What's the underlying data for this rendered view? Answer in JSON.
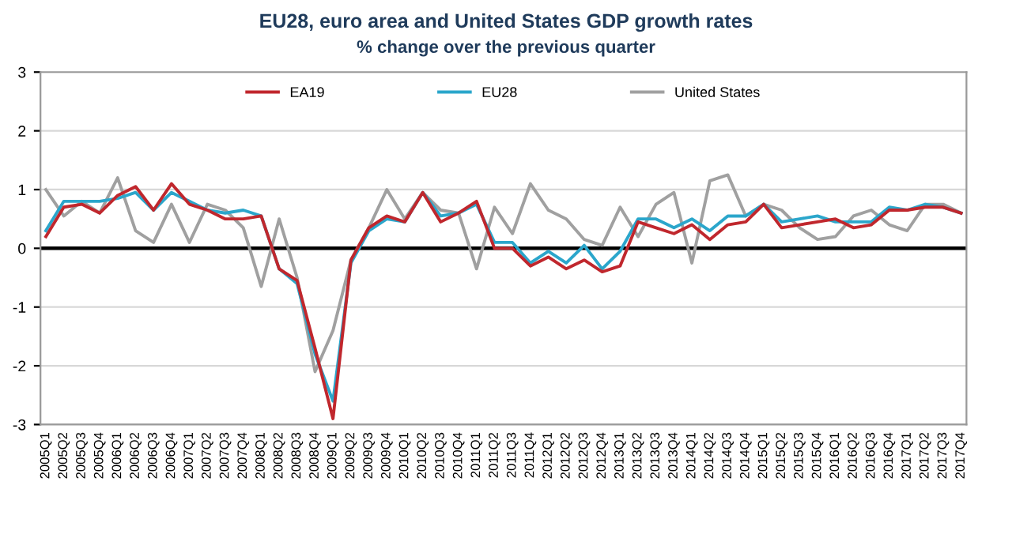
{
  "chart_data": {
    "type": "line",
    "title": "EU28, euro area and United States GDP growth rates",
    "subtitle": "% change over the previous quarter",
    "categories": [
      "2005Q1",
      "2005Q2",
      "2005Q3",
      "2005Q4",
      "2006Q1",
      "2006Q2",
      "2006Q3",
      "2006Q4",
      "2007Q1",
      "2007Q2",
      "2007Q3",
      "2007Q4",
      "2008Q1",
      "2008Q2",
      "2008Q3",
      "2008Q4",
      "2009Q1",
      "2009Q2",
      "2009Q3",
      "2009Q4",
      "2010Q1",
      "2010Q2",
      "2010Q3",
      "2010Q4",
      "2011Q1",
      "2011Q2",
      "2011Q3",
      "2011Q4",
      "2012Q1",
      "2012Q2",
      "2012Q3",
      "2012Q4",
      "2013Q1",
      "2013Q2",
      "2013Q3",
      "2013Q4",
      "2014Q1",
      "2014Q2",
      "2014Q3",
      "2014Q4",
      "2015Q1",
      "2015Q2",
      "2015Q3",
      "2015Q4",
      "2016Q1",
      "2016Q2",
      "2016Q3",
      "2016Q4",
      "2017Q1",
      "2017Q2",
      "2017Q3",
      "2017Q4"
    ],
    "series": [
      {
        "name": "EA19",
        "color": "#c0272d",
        "values": [
          0.2,
          0.7,
          0.75,
          0.6,
          0.9,
          1.05,
          0.65,
          1.1,
          0.75,
          0.65,
          0.5,
          0.5,
          0.55,
          -0.35,
          -0.55,
          -1.7,
          -2.9,
          -0.2,
          0.35,
          0.55,
          0.45,
          0.95,
          0.45,
          0.6,
          0.8,
          0.0,
          0.0,
          -0.3,
          -0.15,
          -0.35,
          -0.2,
          -0.4,
          -0.3,
          0.45,
          0.35,
          0.25,
          0.4,
          0.15,
          0.4,
          0.45,
          0.75,
          0.35,
          0.4,
          0.45,
          0.5,
          0.35,
          0.4,
          0.65,
          0.65,
          0.7,
          0.7,
          0.6
        ]
      },
      {
        "name": "EU28",
        "color": "#2ba6cb",
        "values": [
          0.3,
          0.8,
          0.8,
          0.8,
          0.85,
          0.95,
          0.65,
          0.95,
          0.8,
          0.65,
          0.6,
          0.65,
          0.55,
          -0.35,
          -0.6,
          -1.8,
          -2.6,
          -0.25,
          0.3,
          0.5,
          0.45,
          0.95,
          0.55,
          0.6,
          0.75,
          0.1,
          0.1,
          -0.25,
          -0.05,
          -0.25,
          0.05,
          -0.35,
          -0.05,
          0.5,
          0.5,
          0.35,
          0.5,
          0.3,
          0.55,
          0.55,
          0.75,
          0.45,
          0.5,
          0.55,
          0.45,
          0.45,
          0.45,
          0.7,
          0.65,
          0.75,
          0.7,
          0.6
        ]
      },
      {
        "name": "United States",
        "color": "#a0a0a0",
        "values": [
          1.0,
          0.55,
          0.8,
          0.6,
          1.2,
          0.3,
          0.1,
          0.75,
          0.1,
          0.75,
          0.65,
          0.35,
          -0.65,
          0.5,
          -0.5,
          -2.1,
          -1.4,
          -0.2,
          0.35,
          1.0,
          0.5,
          0.95,
          0.65,
          0.6,
          -0.35,
          0.7,
          0.25,
          1.1,
          0.65,
          0.5,
          0.15,
          0.05,
          0.7,
          0.2,
          0.75,
          0.95,
          -0.25,
          1.15,
          1.25,
          0.55,
          0.75,
          0.65,
          0.35,
          0.15,
          0.2,
          0.55,
          0.65,
          0.4,
          0.3,
          0.75,
          0.75,
          0.6
        ]
      }
    ],
    "ylim": [
      -3,
      3
    ],
    "yticks": [
      -3,
      -2,
      -1,
      0,
      1,
      2,
      3
    ],
    "grid": "y",
    "legend": "top",
    "marker": "none",
    "line_style": "solid",
    "ref_lines": [
      {
        "axis": "y",
        "value": 0,
        "color": "#000000"
      }
    ]
  }
}
